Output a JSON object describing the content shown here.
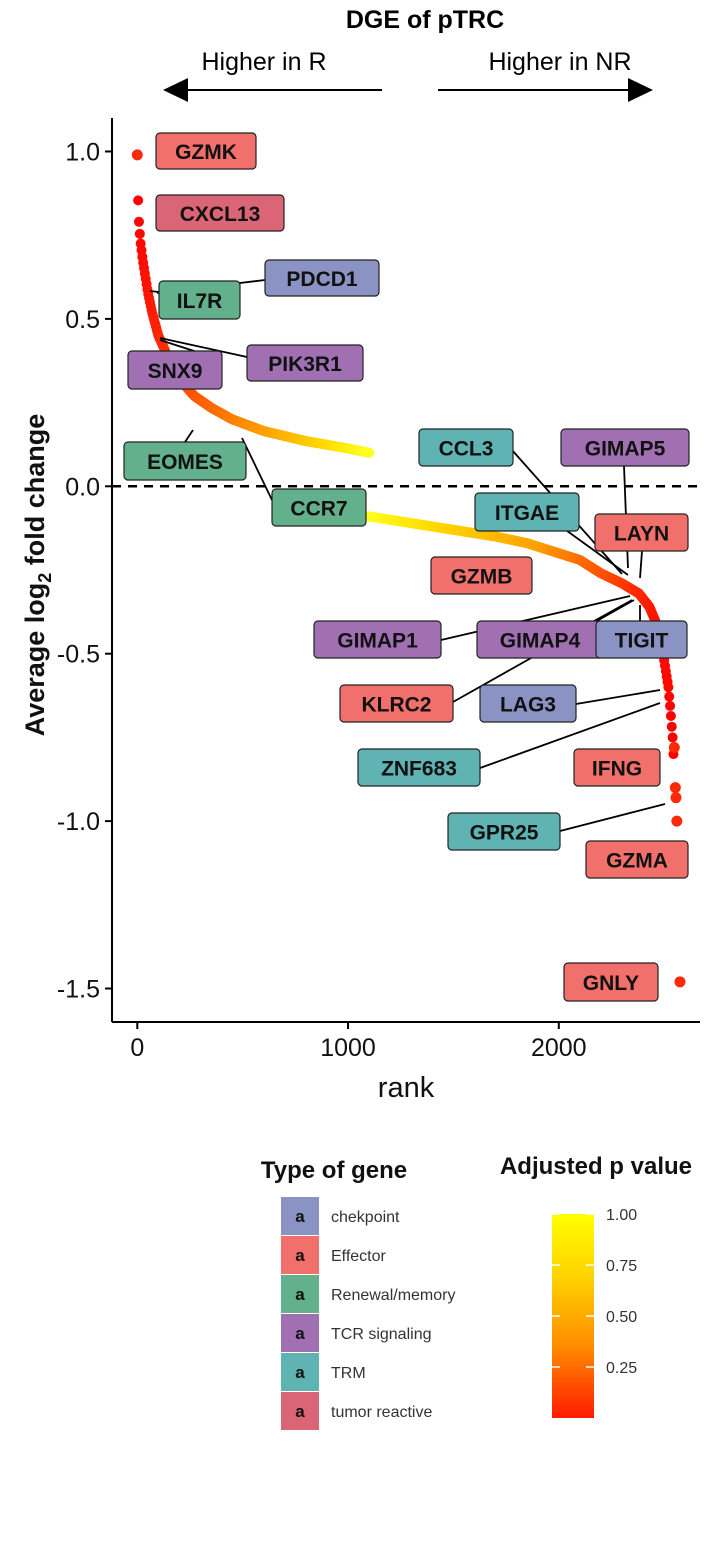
{
  "chart_data": {
    "type": "scatter",
    "title": "DGE of pTRC",
    "direction_left": "Higher in R",
    "direction_right": "Higher in NR",
    "xlabel": "rank",
    "ylabel": "Average log2 fold change",
    "xlim": [
      -120,
      2670
    ],
    "ylim": [
      -1.6,
      1.1
    ],
    "x_ticks": [
      0,
      1000,
      2000
    ],
    "x_tick_labels": [
      "0",
      "1000",
      "2000"
    ],
    "y_ticks": [
      1.0,
      0.5,
      0.0,
      -0.5,
      -1.0,
      -1.5
    ],
    "y_tick_labels": [
      "1.0",
      "0.5",
      "0.0",
      "-0.5",
      "-1.0",
      "-1.5"
    ],
    "reference_line_y": 0,
    "grid": false,
    "curve_up": [
      [
        0,
        0.99
      ],
      [
        5,
        0.82
      ],
      [
        10,
        0.77
      ],
      [
        15,
        0.73
      ],
      [
        25,
        0.68
      ],
      [
        35,
        0.64
      ],
      [
        50,
        0.58
      ],
      [
        70,
        0.52
      ],
      [
        100,
        0.45
      ],
      [
        150,
        0.38
      ],
      [
        200,
        0.32
      ],
      [
        270,
        0.27
      ],
      [
        350,
        0.235
      ],
      [
        450,
        0.2
      ],
      [
        600,
        0.165
      ],
      [
        800,
        0.135
      ],
      [
        1000,
        0.113
      ],
      [
        1100,
        0.1
      ]
    ],
    "curve_down": [
      [
        1100,
        -0.09
      ],
      [
        1300,
        -0.11
      ],
      [
        1500,
        -0.13
      ],
      [
        1700,
        -0.15
      ],
      [
        1850,
        -0.17
      ],
      [
        2000,
        -0.2
      ],
      [
        2100,
        -0.22
      ],
      [
        2200,
        -0.26
      ],
      [
        2300,
        -0.29
      ],
      [
        2380,
        -0.32
      ],
      [
        2430,
        -0.36
      ],
      [
        2470,
        -0.42
      ],
      [
        2500,
        -0.52
      ],
      [
        2520,
        -0.6
      ],
      [
        2530,
        -0.67
      ],
      [
        2540,
        -0.75
      ],
      [
        2548,
        -0.85
      ],
      [
        2553,
        -0.9
      ],
      [
        2556,
        -0.95
      ],
      [
        2560,
        -1.0
      ],
      [
        2565,
        -1.05
      ],
      [
        2570,
        -1.1
      ],
      [
        2575,
        -1.48
      ]
    ],
    "gene_types": [
      {
        "name": "chekpoint",
        "color": "#8a93c3"
      },
      {
        "name": "Effector",
        "color": "#f2706c"
      },
      {
        "name": "Renewal/memory",
        "color": "#62b08c"
      },
      {
        "name": "TCR signaling",
        "color": "#a070b2"
      },
      {
        "name": "TRM",
        "color": "#5fb3b3"
      },
      {
        "name": "tumor reactive",
        "color": "#d96577"
      }
    ],
    "genes": [
      {
        "label": "GZMK",
        "type": "Effector",
        "rank": 0,
        "logfc": 0.99
      },
      {
        "label": "CXCL13",
        "type": "tumor reactive",
        "rank": 5,
        "logfc": 0.82
      },
      {
        "label": "PDCD1",
        "type": "chekpoint",
        "rank": 60,
        "logfc": 0.58
      },
      {
        "label": "IL7R",
        "type": "Renewal/memory",
        "rank": 55,
        "logfc": 0.59
      },
      {
        "label": "PIK3R1",
        "type": "TCR signaling",
        "rank": 100,
        "logfc": 0.45
      },
      {
        "label": "SNX9",
        "type": "TCR signaling",
        "rank": 200,
        "logfc": 0.32
      },
      {
        "label": "EOMES",
        "type": "Renewal/memory",
        "rank": 300,
        "logfc": 0.26
      },
      {
        "label": "CCR7",
        "type": "Renewal/memory",
        "rank": 480,
        "logfc": 0.2
      },
      {
        "label": "CCL3",
        "type": "TRM",
        "rank": 2270,
        "logfc": -0.28
      },
      {
        "label": "GIMAP5",
        "type": "TCR signaling",
        "rank": 2395,
        "logfc": -0.26
      },
      {
        "label": "ITGAE",
        "type": "TRM",
        "rank": 2330,
        "logfc": -0.29
      },
      {
        "label": "LAYN",
        "type": "Effector",
        "rank": 2420,
        "logfc": -0.25
      },
      {
        "label": "GZMB",
        "type": "Effector",
        "rank": 2380,
        "logfc": -0.3
      },
      {
        "label": "GIMAP1",
        "type": "TCR signaling",
        "rank": 2370,
        "logfc": -0.32
      },
      {
        "label": "GIMAP4",
        "type": "TCR signaling",
        "rank": 2380,
        "logfc": -0.33
      },
      {
        "label": "TIGIT",
        "type": "chekpoint",
        "rank": 2430,
        "logfc": -0.4
      },
      {
        "label": "KLRC2",
        "type": "Effector",
        "rank": 2370,
        "logfc": -0.35
      },
      {
        "label": "LAG3",
        "type": "chekpoint",
        "rank": 2500,
        "logfc": -0.6
      },
      {
        "label": "ZNF683",
        "type": "TRM",
        "rank": 2500,
        "logfc": -0.65
      },
      {
        "label": "IFNG",
        "type": "Effector",
        "rank": 2540,
        "logfc": -0.78
      },
      {
        "label": "GPR25",
        "type": "TRM",
        "rank": 2500,
        "logfc": -0.95
      },
      {
        "label": "GZMA",
        "type": "Effector",
        "rank": 2560,
        "logfc": -1.08
      },
      {
        "label": "GNLY",
        "type": "Effector",
        "rank": 2575,
        "logfc": -1.48
      }
    ],
    "legend_type_title": "Type of gene",
    "legend_type_key_glyph": "a",
    "legend_pvalue_title": "Adjusted p value",
    "pvalue_ticks": [
      1.0,
      0.75,
      0.5,
      0.25
    ],
    "pvalue_tick_labels": [
      "1.00",
      "0.75",
      "0.50",
      "0.25"
    ],
    "pvalue_colors": [
      "#ff1a00",
      "#ff8c00",
      "#ffd400",
      "#ffff00"
    ]
  }
}
